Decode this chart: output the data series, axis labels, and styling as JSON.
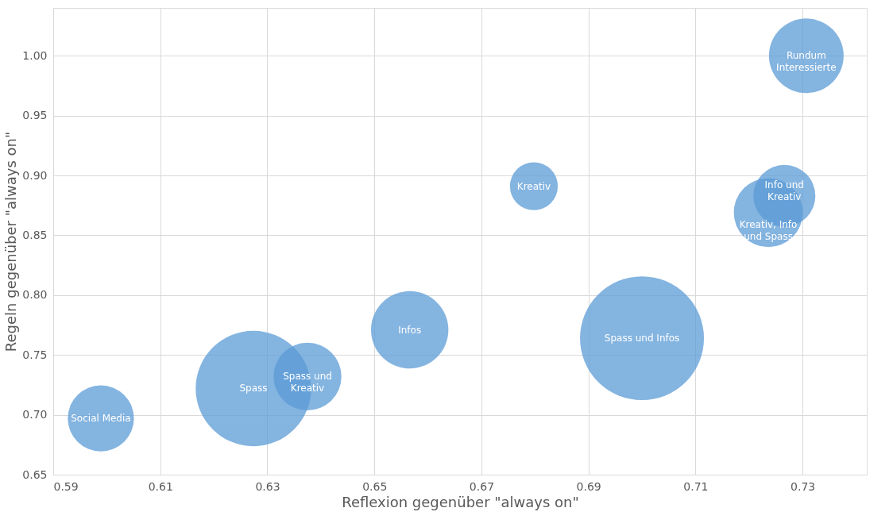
{
  "chart_data": {
    "type": "bubble",
    "xlabel": "Reflexion gegenüber \"always on\"",
    "ylabel": "Regeln gegenüber \"always on\"",
    "x": [
      0.7307,
      0.7266,
      0.7236,
      0.6798,
      0.6566,
      0.7,
      0.6375,
      0.6274,
      0.5989
    ],
    "series": [
      {
        "color": "#5b9bd5",
        "values": [
          1.0,
          0.883,
          0.869,
          0.891,
          0.771,
          0.764,
          0.732,
          0.722,
          0.697
        ],
        "sizes": [
          0.363,
          0.25,
          0.31,
          0.149,
          0.39,
          1,
          0.3,
          0.868,
          0.285
        ]
      }
    ],
    "annotations": [
      {
        "text": "Rundum\nInteressierte",
        "x": 0.7307,
        "y": 1.0
      },
      {
        "text": "Info und\nKreativ",
        "x": 0.7266,
        "y": 0.892
      },
      {
        "text": "Kreativ, Info\nund Spass",
        "x": 0.7236,
        "y": 0.859
      },
      {
        "text": "Kreativ",
        "x": 0.6798,
        "y": 0.891
      },
      {
        "text": "Infos",
        "x": 0.6566,
        "y": 0.771
      },
      {
        "text": "Spass und Infos",
        "x": 0.7,
        "y": 0.764
      },
      {
        "text": "Spass und\nKreativ",
        "x": 0.6375,
        "y": 0.732
      },
      {
        "text": "Spass",
        "x": 0.6274,
        "y": 0.722
      },
      {
        "text": "Social Media",
        "x": 0.5989,
        "y": 0.697
      }
    ],
    "xlim": [
      0.59,
      0.742
    ],
    "xticks": [
      {
        "value": 0.59,
        "label": "0.59"
      },
      {
        "value": 0.61,
        "label": "0.61"
      },
      {
        "value": 0.63,
        "label": "0.63"
      },
      {
        "value": 0.65,
        "label": "0.65"
      },
      {
        "value": 0.67,
        "label": "0.67"
      },
      {
        "value": 0.69,
        "label": "0.69"
      },
      {
        "value": 0.71,
        "label": "0.71"
      },
      {
        "value": 0.73,
        "label": "0.73"
      }
    ],
    "ylim": [
      0.65,
      1.04
    ],
    "yticks": [
      {
        "value": 0.65,
        "label": "0.65"
      },
      {
        "value": 0.7,
        "label": "0.70"
      },
      {
        "value": 0.75,
        "label": "0.75"
      },
      {
        "value": 0.8,
        "label": "0.80"
      },
      {
        "value": 0.85,
        "label": "0.85"
      },
      {
        "value": 0.9,
        "label": "0.90"
      },
      {
        "value": 0.95,
        "label": "0.95"
      },
      {
        "value": 1.0,
        "label": "1.00"
      }
    ],
    "grid": true,
    "legend": false
  }
}
